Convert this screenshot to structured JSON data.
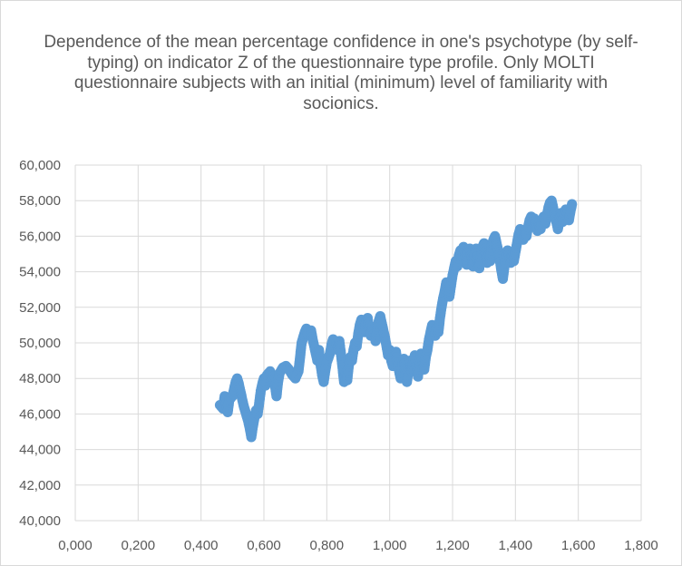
{
  "chart_data": {
    "type": "scatter",
    "title": "Dependence of the mean percentage confidence in one's psychotype (by self-typing) on indicator Z of the questionnaire type profile. Only MOLTI questionnaire subjects with an initial (minimum) level of familiarity with socionics.",
    "xlabel": "",
    "ylabel": "",
    "xlim": [
      0,
      1.8
    ],
    "ylim": [
      40,
      60
    ],
    "x_ticks": [
      "0,000",
      "0,200",
      "0,400",
      "0,600",
      "0,800",
      "1,000",
      "1,200",
      "1,400",
      "1,600",
      "1,800"
    ],
    "y_ticks": [
      "40,000",
      "42,000",
      "44,000",
      "46,000",
      "48,000",
      "50,000",
      "52,000",
      "54,000",
      "56,000",
      "58,000",
      "60,000"
    ],
    "grid": "horizontal and vertical",
    "legend": "none",
    "marker_color": "#5b9bd5",
    "points": [
      [
        0.46,
        46.5
      ],
      [
        0.47,
        46.3
      ],
      [
        0.475,
        47.0
      ],
      [
        0.48,
        46.6
      ],
      [
        0.485,
        46.1
      ],
      [
        0.49,
        46.8
      ],
      [
        0.5,
        47.0
      ],
      [
        0.505,
        47.4
      ],
      [
        0.51,
        47.8
      ],
      [
        0.515,
        48.0
      ],
      [
        0.52,
        47.7
      ],
      [
        0.525,
        47.3
      ],
      [
        0.53,
        46.9
      ],
      [
        0.535,
        46.5
      ],
      [
        0.54,
        46.2
      ],
      [
        0.545,
        45.9
      ],
      [
        0.55,
        45.6
      ],
      [
        0.555,
        45.2
      ],
      [
        0.56,
        44.7
      ],
      [
        0.565,
        45.3
      ],
      [
        0.57,
        45.8
      ],
      [
        0.575,
        46.2
      ],
      [
        0.58,
        46.0
      ],
      [
        0.585,
        46.6
      ],
      [
        0.59,
        47.3
      ],
      [
        0.595,
        47.7
      ],
      [
        0.6,
        48.0
      ],
      [
        0.605,
        47.6
      ],
      [
        0.61,
        48.2
      ],
      [
        0.62,
        48.4
      ],
      [
        0.625,
        47.9
      ],
      [
        0.63,
        48.1
      ],
      [
        0.635,
        47.6
      ],
      [
        0.64,
        47.0
      ],
      [
        0.645,
        47.8
      ],
      [
        0.65,
        48.3
      ],
      [
        0.66,
        48.6
      ],
      [
        0.67,
        48.7
      ],
      [
        0.68,
        48.5
      ],
      [
        0.69,
        48.2
      ],
      [
        0.7,
        48.0
      ],
      [
        0.71,
        48.4
      ],
      [
        0.715,
        49.2
      ],
      [
        0.72,
        50.0
      ],
      [
        0.725,
        50.3
      ],
      [
        0.73,
        50.6
      ],
      [
        0.735,
        50.8
      ],
      [
        0.74,
        50.5
      ],
      [
        0.75,
        50.7
      ],
      [
        0.755,
        50.2
      ],
      [
        0.76,
        49.8
      ],
      [
        0.765,
        49.4
      ],
      [
        0.77,
        49.0
      ],
      [
        0.775,
        49.6
      ],
      [
        0.78,
        48.8
      ],
      [
        0.785,
        48.2
      ],
      [
        0.79,
        47.8
      ],
      [
        0.795,
        48.4
      ],
      [
        0.8,
        48.9
      ],
      [
        0.81,
        49.4
      ],
      [
        0.815,
        49.9
      ],
      [
        0.82,
        50.2
      ],
      [
        0.83,
        50.0
      ],
      [
        0.835,
        49.6
      ],
      [
        0.84,
        50.1
      ],
      [
        0.845,
        49.4
      ],
      [
        0.85,
        48.6
      ],
      [
        0.855,
        47.8
      ],
      [
        0.86,
        48.3
      ],
      [
        0.865,
        47.9
      ],
      [
        0.87,
        48.7
      ],
      [
        0.875,
        49.2
      ],
      [
        0.88,
        49.0
      ],
      [
        0.885,
        49.6
      ],
      [
        0.89,
        50.0
      ],
      [
        0.895,
        49.8
      ],
      [
        0.9,
        50.5
      ],
      [
        0.905,
        51.0
      ],
      [
        0.91,
        51.3
      ],
      [
        0.915,
        51.0
      ],
      [
        0.92,
        50.6
      ],
      [
        0.925,
        51.2
      ],
      [
        0.93,
        51.4
      ],
      [
        0.935,
        50.8
      ],
      [
        0.94,
        50.4
      ],
      [
        0.945,
        50.9
      ],
      [
        0.95,
        50.5
      ],
      [
        0.955,
        50.1
      ],
      [
        0.96,
        50.6
      ],
      [
        0.965,
        51.2
      ],
      [
        0.97,
        51.5
      ],
      [
        0.975,
        51.1
      ],
      [
        0.98,
        50.7
      ],
      [
        0.985,
        50.3
      ],
      [
        0.99,
        49.8
      ],
      [
        0.995,
        49.3
      ],
      [
        1.0,
        49.6
      ],
      [
        1.005,
        49.0
      ],
      [
        1.01,
        48.7
      ],
      [
        1.015,
        49.2
      ],
      [
        1.02,
        49.5
      ],
      [
        1.025,
        48.9
      ],
      [
        1.03,
        48.4
      ],
      [
        1.035,
        48.0
      ],
      [
        1.04,
        48.6
      ],
      [
        1.045,
        49.1
      ],
      [
        1.05,
        48.3
      ],
      [
        1.055,
        47.8
      ],
      [
        1.06,
        48.5
      ],
      [
        1.065,
        49.0
      ],
      [
        1.07,
        48.4
      ],
      [
        1.075,
        48.9
      ],
      [
        1.08,
        49.3
      ],
      [
        1.085,
        48.7
      ],
      [
        1.09,
        48.1
      ],
      [
        1.095,
        48.8
      ],
      [
        1.1,
        49.4
      ],
      [
        1.105,
        48.9
      ],
      [
        1.11,
        48.5
      ],
      [
        1.115,
        49.2
      ],
      [
        1.12,
        49.6
      ],
      [
        1.125,
        50.2
      ],
      [
        1.13,
        50.6
      ],
      [
        1.135,
        51.0
      ],
      [
        1.14,
        50.7
      ],
      [
        1.145,
        50.4
      ],
      [
        1.15,
        51.0
      ],
      [
        1.155,
        50.6
      ],
      [
        1.16,
        51.4
      ],
      [
        1.165,
        52.0
      ],
      [
        1.17,
        52.5
      ],
      [
        1.175,
        52.9
      ],
      [
        1.18,
        53.4
      ],
      [
        1.185,
        53.0
      ],
      [
        1.19,
        52.6
      ],
      [
        1.195,
        53.2
      ],
      [
        1.2,
        53.8
      ],
      [
        1.205,
        54.2
      ],
      [
        1.21,
        54.6
      ],
      [
        1.215,
        54.3
      ],
      [
        1.22,
        54.9
      ],
      [
        1.225,
        55.2
      ],
      [
        1.23,
        54.7
      ],
      [
        1.235,
        55.4
      ],
      [
        1.24,
        55.0
      ],
      [
        1.245,
        54.4
      ],
      [
        1.25,
        55.1
      ],
      [
        1.255,
        55.3
      ],
      [
        1.26,
        54.8
      ],
      [
        1.265,
        54.3
      ],
      [
        1.27,
        54.9
      ],
      [
        1.275,
        55.3
      ],
      [
        1.28,
        54.7
      ],
      [
        1.285,
        54.2
      ],
      [
        1.29,
        54.8
      ],
      [
        1.295,
        55.4
      ],
      [
        1.3,
        55.6
      ],
      [
        1.305,
        55.0
      ],
      [
        1.31,
        54.5
      ],
      [
        1.315,
        55.1
      ],
      [
        1.32,
        54.6
      ],
      [
        1.325,
        55.5
      ],
      [
        1.33,
        55.8
      ],
      [
        1.335,
        56.0
      ],
      [
        1.34,
        55.6
      ],
      [
        1.345,
        55.2
      ],
      [
        1.35,
        54.7
      ],
      [
        1.355,
        54.1
      ],
      [
        1.36,
        53.6
      ],
      [
        1.365,
        54.3
      ],
      [
        1.37,
        54.8
      ],
      [
        1.375,
        55.2
      ],
      [
        1.38,
        54.9
      ],
      [
        1.385,
        54.5
      ],
      [
        1.39,
        55.0
      ],
      [
        1.395,
        54.6
      ],
      [
        1.4,
        55.1
      ],
      [
        1.405,
        55.6
      ],
      [
        1.41,
        56.1
      ],
      [
        1.415,
        56.4
      ],
      [
        1.42,
        56.2
      ],
      [
        1.425,
        55.8
      ],
      [
        1.43,
        56.3
      ],
      [
        1.435,
        56.0
      ],
      [
        1.44,
        56.5
      ],
      [
        1.445,
        56.9
      ],
      [
        1.45,
        57.1
      ],
      [
        1.455,
        56.8
      ],
      [
        1.46,
        57.0
      ],
      [
        1.465,
        56.6
      ],
      [
        1.47,
        56.3
      ],
      [
        1.475,
        56.7
      ],
      [
        1.48,
        56.4
      ],
      [
        1.485,
        56.8
      ],
      [
        1.49,
        57.1
      ],
      [
        1.495,
        56.7
      ],
      [
        1.5,
        57.2
      ],
      [
        1.505,
        57.6
      ],
      [
        1.51,
        57.9
      ],
      [
        1.515,
        58.0
      ],
      [
        1.52,
        57.6
      ],
      [
        1.525,
        57.1
      ],
      [
        1.53,
        56.8
      ],
      [
        1.535,
        56.4
      ],
      [
        1.54,
        56.9
      ],
      [
        1.545,
        57.3
      ],
      [
        1.55,
        56.8
      ],
      [
        1.555,
        57.2
      ],
      [
        1.56,
        57.5
      ],
      [
        1.565,
        57.1
      ],
      [
        1.57,
        56.9
      ],
      [
        1.575,
        57.4
      ],
      [
        1.58,
        57.8
      ]
    ]
  }
}
